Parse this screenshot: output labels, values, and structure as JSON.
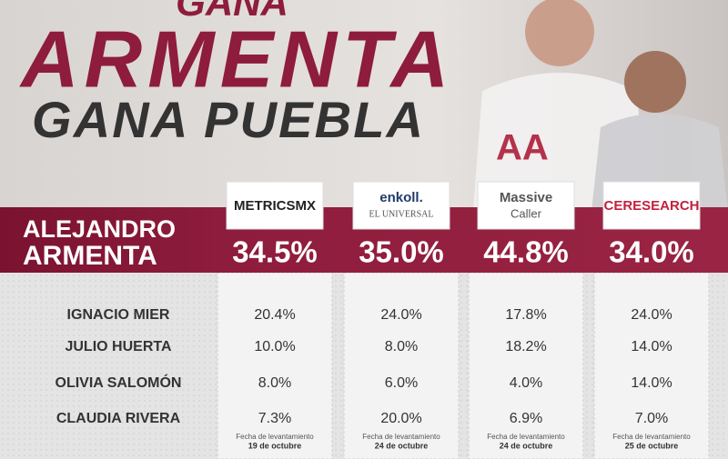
{
  "header": {
    "line1": "GANA",
    "line2": "ARMENTA",
    "line3": "GANA PUEBLA"
  },
  "pollsters": [
    {
      "name": "METRICSMX"
    },
    {
      "name": "enkoll.",
      "subtitle": "EL UNIVERSAL"
    },
    {
      "name": "Massive",
      "subtitle": "Caller"
    },
    {
      "name": "CERESEARCH"
    }
  ],
  "lead": {
    "first_name": "ALEJANDRO",
    "last_name": "ARMENTA",
    "values": [
      "34.5%",
      "35.0%",
      "44.8%",
      "34.0%"
    ]
  },
  "table": {
    "rows": [
      {
        "name": "IGNACIO MIER",
        "values": [
          "20.4%",
          "24.0%",
          "17.8%",
          "24.0%"
        ]
      },
      {
        "name": "JULIO HUERTA",
        "values": [
          "10.0%",
          "8.0%",
          "18.2%",
          "14.0%"
        ]
      },
      {
        "name": "OLIVIA SALOMÓN",
        "values": [
          "8.0%",
          "6.0%",
          "4.0%",
          "14.0%"
        ]
      },
      {
        "name": "CLAUDIA RIVERA",
        "values": [
          "7.3%",
          "20.0%",
          "6.9%",
          "7.0%"
        ]
      }
    ]
  },
  "dates": [
    {
      "label": "Fecha de levantamiento",
      "date": "19 de octubre"
    },
    {
      "label": "Fecha de levantamiento",
      "date": "24 de octubre"
    },
    {
      "label": "Fecha de levantamiento",
      "date": "24 de octubre"
    },
    {
      "label": "Fecha de levantamiento",
      "date": "25 de octubre"
    }
  ]
}
